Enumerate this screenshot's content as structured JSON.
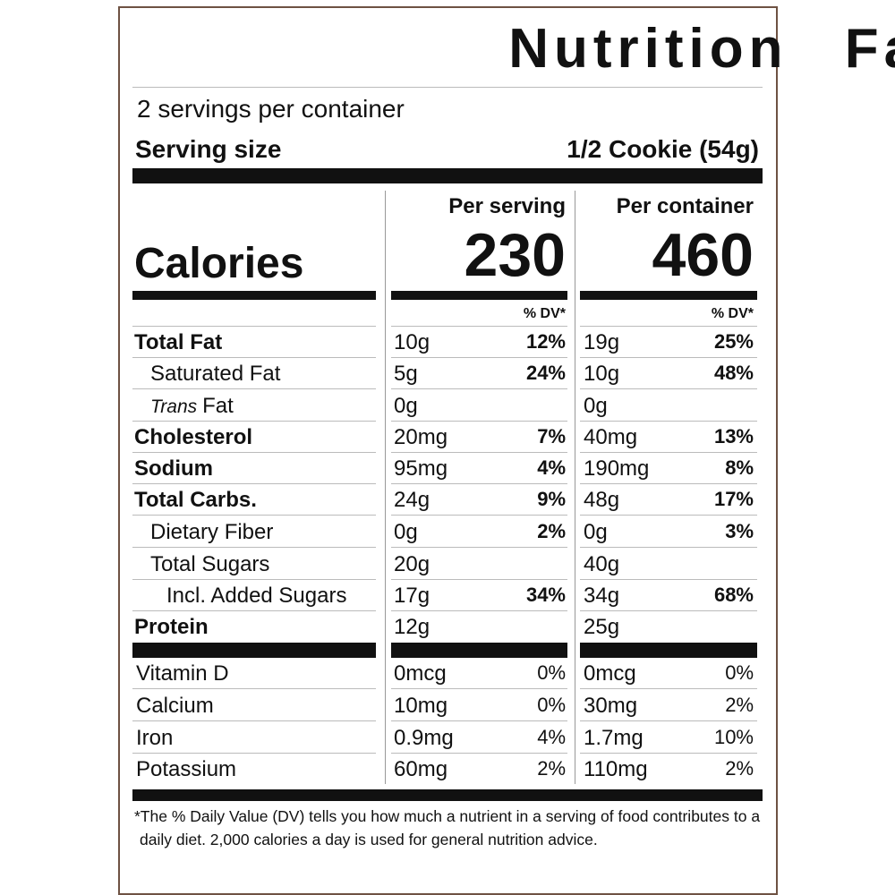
{
  "title": "Nutrition Facts",
  "servings": "2 servings per container",
  "serving_size": {
    "label": "Serving size",
    "value": "1/2 Cookie (54g)"
  },
  "columns": [
    "Per serving",
    "Per container"
  ],
  "calories": {
    "label": "Calories",
    "values": [
      230,
      460
    ]
  },
  "dv_header": "% DV*",
  "nutrients": [
    {
      "name": "Total Fat",
      "serving": [
        "10g",
        "12%"
      ],
      "container": [
        "19g",
        "25%"
      ]
    },
    {
      "name": "Saturated Fat",
      "serving": [
        "5g",
        "24%"
      ],
      "container": [
        "10g",
        "48%"
      ]
    },
    {
      "prefix": "Trans",
      "name": "Fat",
      "serving": [
        "0g"
      ],
      "container": [
        "0g"
      ]
    },
    {
      "name": "Cholesterol",
      "serving": [
        "20mg",
        "7%"
      ],
      "container": [
        "40mg",
        "13%"
      ]
    },
    {
      "name": "Sodium",
      "serving": [
        "95mg",
        "4%"
      ],
      "container": [
        "190mg",
        "8%"
      ]
    },
    {
      "name": "Total Carbs.",
      "serving": [
        "24g",
        "9%"
      ],
      "container": [
        "48g",
        "17%"
      ]
    },
    {
      "name": "Dietary Fiber",
      "serving": [
        "0g",
        "2%"
      ],
      "container": [
        "0g",
        "3%"
      ]
    },
    {
      "name": "Total Sugars",
      "serving": [
        "20g"
      ],
      "container": [
        "40g"
      ]
    },
    {
      "name": "Incl. Added Sugars",
      "serving": [
        "17g",
        "34%"
      ],
      "container": [
        "34g",
        "68%"
      ]
    },
    {
      "name": "Protein",
      "serving": [
        "12g"
      ],
      "container": [
        "25g"
      ]
    }
  ],
  "vitamins": [
    {
      "name": "Vitamin D",
      "serving": [
        "0mcg",
        "0%"
      ],
      "container": [
        "0mcg",
        "0%"
      ]
    },
    {
      "name": "Calcium",
      "serving": [
        "10mg",
        "0%"
      ],
      "container": [
        "30mg",
        "2%"
      ]
    },
    {
      "name": "Iron",
      "serving": [
        "0.9mg",
        "4%"
      ],
      "container": [
        "1.7mg",
        "10%"
      ]
    },
    {
      "name": "Potassium",
      "serving": [
        "60mg",
        "2%"
      ],
      "container": [
        "110mg",
        "2%"
      ]
    }
  ],
  "footnote": "*The % Daily Value (DV) tells you how much a nutrient in a serving of food contributes to a daily diet. 2,000 calories a day is used for general nutrition advice."
}
